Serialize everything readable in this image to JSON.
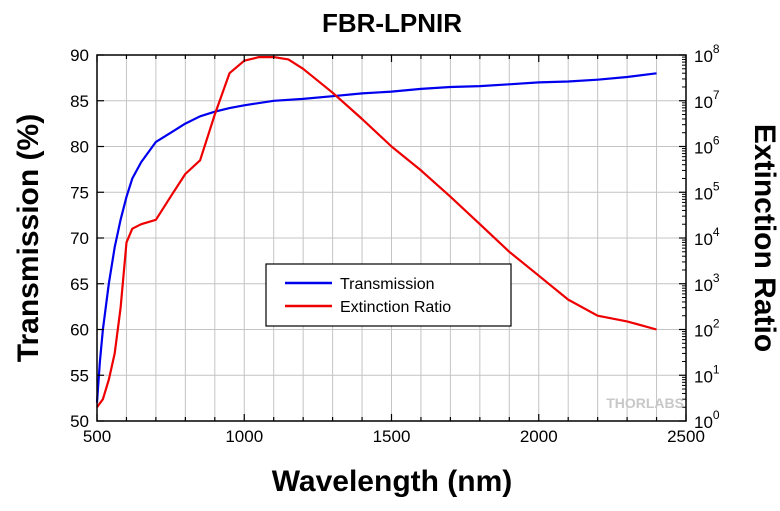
{
  "chart_data": {
    "type": "line",
    "title": "FBR-LPNIR",
    "xlabel": "Wavelength (nm)",
    "ylabel": "Transmission (%)",
    "y2label": "Extinction Ratio",
    "xlim": [
      500,
      2500
    ],
    "ylim": [
      50,
      90
    ],
    "y2lim": [
      1,
      100000000
    ],
    "y2scale": "log",
    "grid": true,
    "legend_position": "center",
    "x_ticks": [
      "500",
      "1000",
      "1500",
      "2000",
      "2500"
    ],
    "y_ticks": [
      "50",
      "55",
      "60",
      "65",
      "70",
      "75",
      "80",
      "85",
      "90"
    ],
    "y2_ticks": [
      {
        "base": "10",
        "exp": "0"
      },
      {
        "base": "10",
        "exp": "1"
      },
      {
        "base": "10",
        "exp": "2"
      },
      {
        "base": "10",
        "exp": "3"
      },
      {
        "base": "10",
        "exp": "4"
      },
      {
        "base": "10",
        "exp": "5"
      },
      {
        "base": "10",
        "exp": "6"
      },
      {
        "base": "10",
        "exp": "7"
      },
      {
        "base": "10",
        "exp": "8"
      }
    ],
    "series": [
      {
        "name": "Transmission",
        "axis": "left",
        "color": "#0000ee",
        "x": [
          500,
          510,
          520,
          540,
          560,
          580,
          600,
          620,
          650,
          700,
          750,
          800,
          850,
          900,
          950,
          1000,
          1100,
          1200,
          1300,
          1400,
          1500,
          1600,
          1700,
          1800,
          1900,
          2000,
          2100,
          2200,
          2300,
          2400
        ],
        "y": [
          52,
          56.5,
          60,
          65,
          69,
          72,
          74.5,
          76.5,
          78.3,
          80.5,
          81.5,
          82.5,
          83.3,
          83.8,
          84.2,
          84.5,
          85,
          85.2,
          85.5,
          85.8,
          86,
          86.3,
          86.5,
          86.6,
          86.8,
          87,
          87.1,
          87.3,
          87.6,
          88
        ]
      },
      {
        "name": "Extinction Ratio",
        "axis": "right",
        "color": "#ee0000",
        "x": [
          500,
          520,
          540,
          560,
          580,
          600,
          620,
          650,
          700,
          750,
          800,
          850,
          900,
          950,
          1000,
          1050,
          1100,
          1150,
          1200,
          1300,
          1400,
          1500,
          1600,
          1700,
          1800,
          1900,
          2000,
          2100,
          2200,
          2300,
          2400
        ],
        "y": [
          2,
          3,
          8,
          30,
          300,
          8000,
          16000,
          20000,
          25000,
          80000,
          250000,
          500000,
          5000000,
          40000000,
          75000000,
          90000000,
          90000000,
          80000000,
          50000000,
          15000000,
          4000000,
          1000000,
          300000,
          80000,
          20000,
          5000,
          1500,
          450,
          200,
          150,
          100
        ]
      }
    ]
  },
  "watermark": "THORLABS"
}
